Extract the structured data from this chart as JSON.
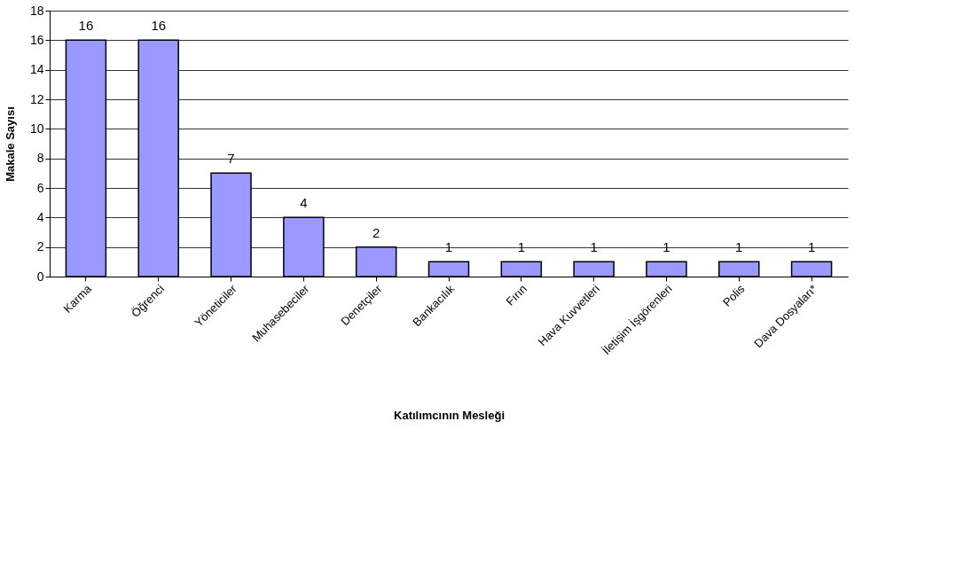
{
  "chart_data": {
    "type": "bar",
    "xlabel": "Katılımcının Mesleği",
    "ylabel": "Makale Sayısı",
    "categories": [
      "Karma",
      "Öğrenci",
      "Yöneticiler",
      "Muhasebeciler",
      "Denetçiler",
      "Bankacılık",
      "Fırın",
      "Hava Kuvvetleri",
      "İletişim İşgörenleri",
      "Polis",
      "Dava Dosyaları*"
    ],
    "values": [
      16,
      16,
      7,
      4,
      2,
      1,
      1,
      1,
      1,
      1,
      1
    ],
    "color": "#9999ff",
    "ylim": [
      0,
      18
    ],
    "yticks": [
      0,
      2,
      4,
      6,
      8,
      10,
      12,
      14,
      16,
      18
    ],
    "grid": "y",
    "data_labels": true
  }
}
